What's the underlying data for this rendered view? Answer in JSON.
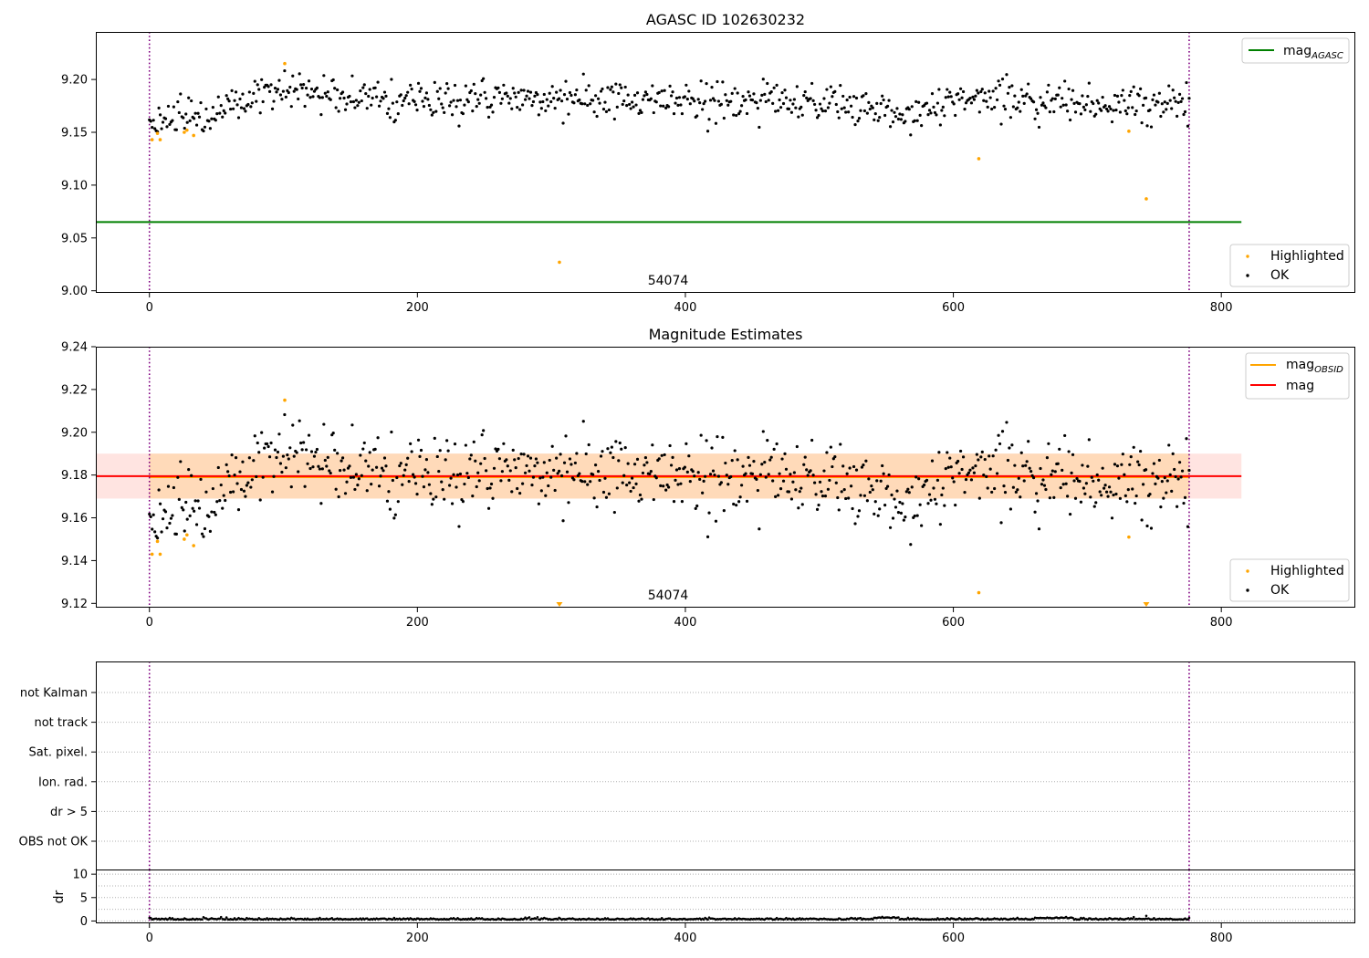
{
  "figure": {
    "title": "AGASC ID 102630232",
    "obsid_label": "54074"
  },
  "colors": {
    "ok": "#000000",
    "highlighted": "#ffa500",
    "mag_agasc": "#008000",
    "mag_obsid": "#ffa500",
    "mag": "#ff0000",
    "obsid_boundary": "#800080",
    "band_inner": "#ffdab9",
    "band_outer": "#ffe4e1",
    "grid": "#b0b0b0"
  },
  "chart_data": [
    {
      "type": "scatter",
      "title": "",
      "xlabel": "",
      "ylabel": "",
      "xlim": [
        -40,
        900
      ],
      "ylim": [
        8.998,
        9.245
      ],
      "xticks": [
        0,
        200,
        400,
        600,
        800
      ],
      "yticks": [
        9.0,
        9.05,
        9.1,
        9.15,
        9.2
      ],
      "ytick_labels": [
        "9.00",
        "9.05",
        "9.10",
        "9.15",
        "9.20"
      ],
      "hlines": [
        {
          "name": "mag_AGASC",
          "y": 9.065,
          "x": [
            -40,
            815
          ]
        }
      ],
      "vlines": [
        0,
        776
      ],
      "legend_upper": [
        "mag_AGASC"
      ],
      "legend_lower": [
        "Highlighted",
        "OK"
      ],
      "legend_placement": [
        "top-right",
        "bottom-right"
      ],
      "ok_trend": {
        "x": [
          0,
          20,
          40,
          60,
          80,
          100,
          150,
          200,
          300,
          400,
          500,
          540,
          560,
          580,
          620,
          700,
          776
        ],
        "y": [
          9.158,
          9.162,
          9.168,
          9.175,
          9.182,
          9.19,
          9.184,
          9.18,
          9.18,
          9.182,
          9.18,
          9.17,
          9.168,
          9.174,
          9.186,
          9.176,
          9.176
        ]
      },
      "ok_scatter_sd": 0.009,
      "ok_count": 770,
      "highlighted": [
        {
          "x": 2,
          "y": 9.143
        },
        {
          "x": 6,
          "y": 9.149
        },
        {
          "x": 8,
          "y": 9.143
        },
        {
          "x": 26,
          "y": 9.15
        },
        {
          "x": 28,
          "y": 9.152
        },
        {
          "x": 33,
          "y": 9.147
        },
        {
          "x": 101,
          "y": 9.215
        },
        {
          "x": 306,
          "y": 9.027
        },
        {
          "x": 619,
          "y": 9.125
        },
        {
          "x": 731,
          "y": 9.151
        },
        {
          "x": 744,
          "y": 9.087
        }
      ]
    },
    {
      "type": "scatter",
      "title": "Magnitude Estimates",
      "xlabel": "",
      "ylabel": "",
      "xlim": [
        -40,
        900
      ],
      "ylim": [
        9.118,
        9.24
      ],
      "xticks": [
        0,
        200,
        400,
        600,
        800
      ],
      "yticks": [
        9.12,
        9.14,
        9.16,
        9.18,
        9.2,
        9.22,
        9.24
      ],
      "ytick_labels": [
        "9.12",
        "9.14",
        "9.16",
        "9.18",
        "9.20",
        "9.22",
        "9.24"
      ],
      "hlines": [
        {
          "name": "mag_OBSID",
          "y": 9.179,
          "x": [
            0,
            776
          ]
        },
        {
          "name": "mag",
          "y": 9.1795,
          "x": [
            -40,
            815
          ]
        }
      ],
      "bands": [
        {
          "name": "mag_OBSID",
          "y": [
            9.169,
            9.19
          ],
          "x": [
            0,
            776
          ]
        },
        {
          "name": "mag",
          "y": [
            9.169,
            9.19
          ],
          "x": [
            -40,
            815
          ]
        }
      ],
      "vlines": [
        0,
        776
      ],
      "legend_upper": [
        "mag_OBSID",
        "mag"
      ],
      "legend_lower": [
        "Highlighted",
        "OK"
      ],
      "legend_placement": [
        "top-right",
        "bottom-right"
      ],
      "off_scale_low": [
        {
          "x": 306
        },
        {
          "x": 744
        }
      ]
    },
    {
      "type": "scatter",
      "title": "",
      "xlabel": "",
      "ylabel": "",
      "xlim": [
        -40,
        900
      ],
      "categories": [
        "not Kalman",
        "not track",
        "Sat. pixel.",
        "Ion. rad.",
        "dr > 5",
        "OBS not OK"
      ],
      "flags": [],
      "vlines": [
        0,
        776
      ]
    },
    {
      "type": "scatter",
      "title": "",
      "xlabel": "",
      "ylabel": "dr",
      "xlim": [
        -40,
        900
      ],
      "ylim": [
        -0.5,
        11
      ],
      "xticks": [
        0,
        200,
        400,
        600,
        800
      ],
      "yticks": [
        0,
        5,
        10
      ],
      "ytick_labels": [
        "0",
        "5",
        "10"
      ],
      "hlines": [
        {
          "name": "dr limit",
          "y": 5
        }
      ],
      "vlines": [
        0,
        776
      ],
      "dr_typical": 0.3,
      "dr_peak": {
        "x": 744,
        "y": 1.1
      }
    }
  ]
}
